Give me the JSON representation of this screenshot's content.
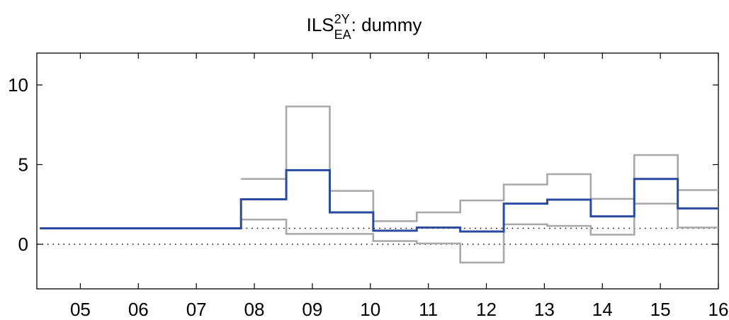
{
  "chart_data": {
    "type": "line",
    "title": {
      "base": "ILS",
      "superscript": "2Y",
      "subscript": "EA",
      "suffix": ": dummy"
    },
    "xlabel": "",
    "ylabel": "",
    "xlim": [
      2004.25,
      2016.0
    ],
    "ylim": [
      -2.8,
      12.0
    ],
    "x_ticks": [
      {
        "value": 2005,
        "label": "05"
      },
      {
        "value": 2006,
        "label": "06"
      },
      {
        "value": 2007,
        "label": "07"
      },
      {
        "value": 2008,
        "label": "08"
      },
      {
        "value": 2009,
        "label": "09"
      },
      {
        "value": 2010,
        "label": "10"
      },
      {
        "value": 2011,
        "label": "11"
      },
      {
        "value": 2012,
        "label": "12"
      },
      {
        "value": 2013,
        "label": "13"
      },
      {
        "value": 2014,
        "label": "14"
      },
      {
        "value": 2015,
        "label": "15"
      },
      {
        "value": 2016,
        "label": "16"
      }
    ],
    "y_ticks": [
      {
        "value": 0,
        "label": "0"
      },
      {
        "value": 5,
        "label": "5"
      },
      {
        "value": 10,
        "label": "10"
      }
    ],
    "grid": false,
    "reference_lines": [
      {
        "y": 0,
        "style": "dotted"
      },
      {
        "y": 1,
        "style": "dotted",
        "x_from": 2007.77
      }
    ],
    "series": [
      {
        "role": "upper_band",
        "color": "#a8a8a8",
        "step": true,
        "x": [
          2007.77,
          2008.55,
          2009.3,
          2010.05,
          2010.8,
          2011.55,
          2012.3,
          2013.05,
          2013.8,
          2014.55,
          2015.3,
          2016.0
        ],
        "y": [
          4.1,
          8.65,
          3.35,
          1.45,
          2.0,
          2.75,
          3.75,
          4.4,
          2.85,
          5.6,
          3.4,
          3.4
        ]
      },
      {
        "role": "lower_band",
        "color": "#a8a8a8",
        "step": true,
        "x": [
          2007.77,
          2008.55,
          2009.3,
          2010.05,
          2010.8,
          2011.55,
          2012.3,
          2013.05,
          2013.8,
          2014.55,
          2015.3,
          2016.0
        ],
        "y": [
          1.55,
          0.65,
          0.65,
          0.2,
          0.05,
          -1.15,
          1.25,
          1.15,
          0.6,
          2.55,
          1.05,
          1.05
        ]
      },
      {
        "role": "median",
        "color": "#2a4aa0",
        "step": true,
        "x": [
          2004.3,
          2007.77,
          2008.55,
          2009.3,
          2010.05,
          2010.8,
          2011.55,
          2012.3,
          2013.05,
          2013.8,
          2014.55,
          2015.3,
          2016.0
        ],
        "y": [
          1.0,
          2.82,
          4.65,
          2.0,
          0.85,
          1.05,
          0.8,
          2.55,
          2.8,
          1.75,
          4.1,
          2.25,
          2.25
        ]
      }
    ]
  }
}
